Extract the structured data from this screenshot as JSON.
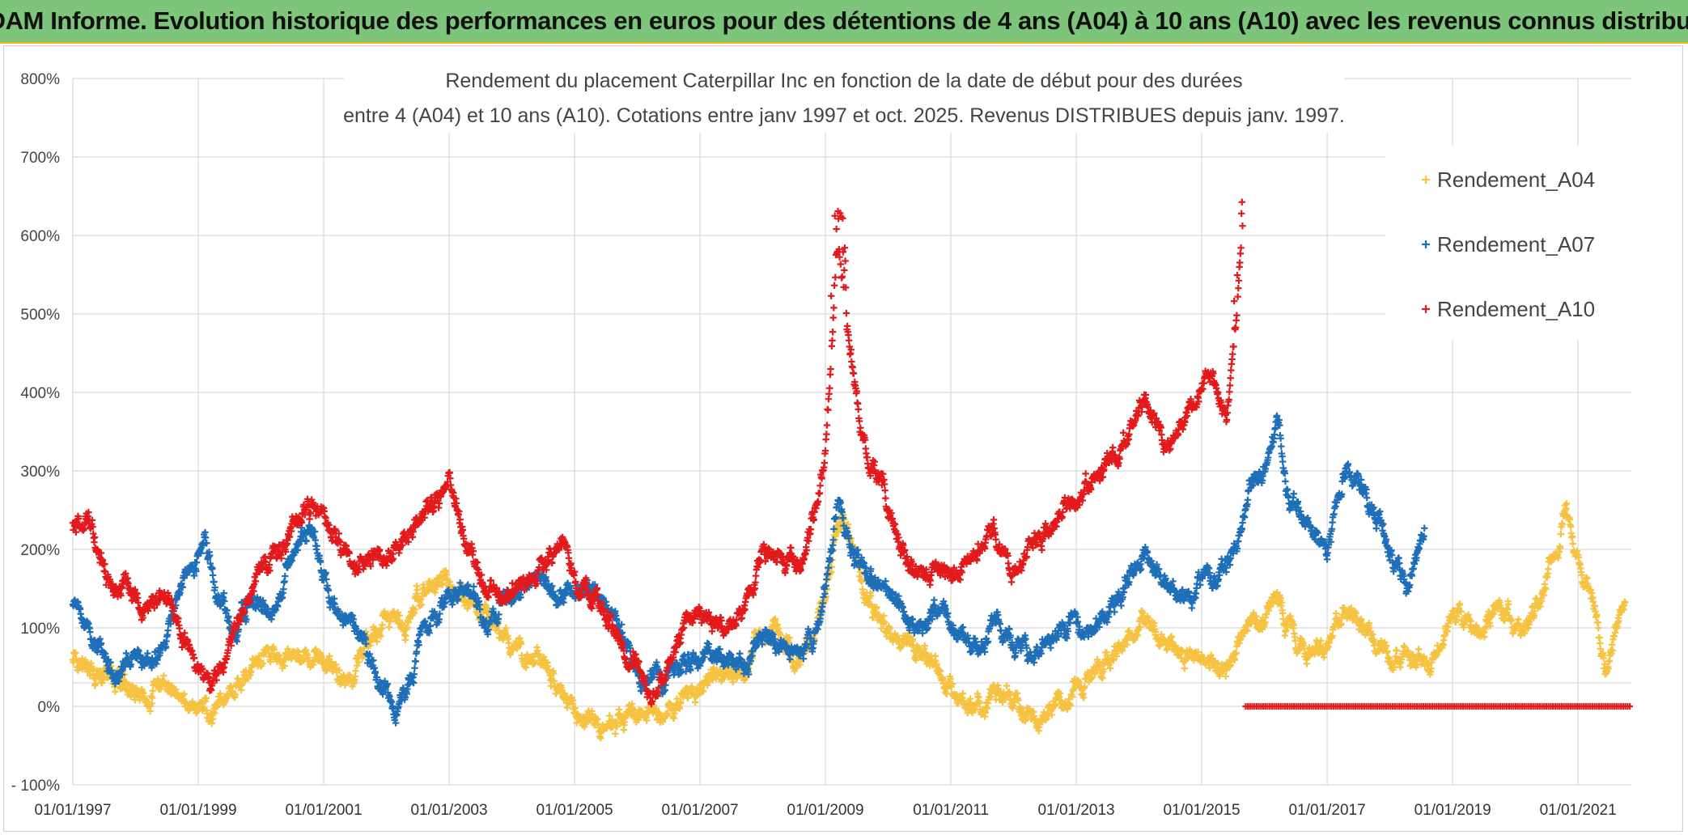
{
  "banner": {
    "title": "ADAM Informe. Evolution historique des performances en euros pour des détentions de 4 ans (A04) à 10 ans (A10) avec les revenus connus distribués"
  },
  "chart_data": {
    "type": "scatter",
    "title_line1": "Rendement du placement Caterpillar Inc en fonction de la date de début pour des durées",
    "title_line2": "entre 4 (A04) et 10 ans (A10). Cotations entre janv 1997 et oct. 2025. Revenus DISTRIBUES depuis janv. 1997.",
    "xlabel": "",
    "ylabel": "",
    "x_range": [
      1997.0,
      2021.85
    ],
    "ylim": [
      -100,
      800
    ],
    "y_ticks": [
      {
        "value": 800,
        "label": "800%"
      },
      {
        "value": 700,
        "label": "700%"
      },
      {
        "value": 600,
        "label": "600%"
      },
      {
        "value": 500,
        "label": "500%"
      },
      {
        "value": 400,
        "label": "400%"
      },
      {
        "value": 300,
        "label": "300%"
      },
      {
        "value": 200,
        "label": "200%"
      },
      {
        "value": 100,
        "label": "100%"
      },
      {
        "value": 0,
        "label": "0%"
      },
      {
        "value": -100,
        "label": "- 100%"
      }
    ],
    "x_ticks": [
      {
        "value": 1997,
        "label": "01/01/1997"
      },
      {
        "value": 1999,
        "label": "01/01/1999"
      },
      {
        "value": 2001,
        "label": "01/01/2001"
      },
      {
        "value": 2003,
        "label": "01/01/2003"
      },
      {
        "value": 2005,
        "label": "01/01/2005"
      },
      {
        "value": 2007,
        "label": "01/01/2007"
      },
      {
        "value": 2009,
        "label": "01/01/2009"
      },
      {
        "value": 2011,
        "label": "01/01/2011"
      },
      {
        "value": 2013,
        "label": "01/01/2013"
      },
      {
        "value": 2015,
        "label": "01/01/2015"
      },
      {
        "value": 2017,
        "label": "01/01/2017"
      },
      {
        "value": 2019,
        "label": "01/01/2019"
      },
      {
        "value": 2021,
        "label": "01/01/2021"
      }
    ],
    "grid": true,
    "legend_position": "top-right",
    "series": [
      {
        "name": "Rendement_A04",
        "color": "#f5c242",
        "x_end": 2021.75,
        "points": [
          [
            1997.0,
            55
          ],
          [
            1997.4,
            48
          ],
          [
            1997.8,
            30
          ],
          [
            1998.2,
            12
          ],
          [
            1998.5,
            30
          ],
          [
            1998.8,
            10
          ],
          [
            1999.2,
            -10
          ],
          [
            1999.5,
            20
          ],
          [
            1999.9,
            55
          ],
          [
            2000.3,
            60
          ],
          [
            2000.6,
            75
          ],
          [
            2001.0,
            60
          ],
          [
            2001.4,
            30
          ],
          [
            2001.7,
            90
          ],
          [
            2002.0,
            110
          ],
          [
            2002.3,
            105
          ],
          [
            2002.6,
            150
          ],
          [
            2002.9,
            170
          ],
          [
            2003.2,
            150
          ],
          [
            2003.5,
            120
          ],
          [
            2003.8,
            90
          ],
          [
            2004.1,
            60
          ],
          [
            2004.4,
            55
          ],
          [
            2004.7,
            30
          ],
          [
            2004.9,
            5
          ],
          [
            2005.2,
            -20
          ],
          [
            2005.5,
            -30
          ],
          [
            2005.8,
            -15
          ],
          [
            2006.1,
            -5
          ],
          [
            2006.4,
            -15
          ],
          [
            2006.7,
            10
          ],
          [
            2007.0,
            20
          ],
          [
            2007.3,
            55
          ],
          [
            2007.6,
            30
          ],
          [
            2007.9,
            80
          ],
          [
            2008.2,
            100
          ],
          [
            2008.5,
            60
          ],
          [
            2008.8,
            90
          ],
          [
            2009.0,
            160
          ],
          [
            2009.2,
            240
          ],
          [
            2009.4,
            210
          ],
          [
            2009.6,
            150
          ],
          [
            2009.9,
            100
          ],
          [
            2010.2,
            80
          ],
          [
            2010.5,
            70
          ],
          [
            2010.8,
            50
          ],
          [
            2011.1,
            10
          ],
          [
            2011.4,
            -5
          ],
          [
            2011.7,
            20
          ],
          [
            2012.0,
            5
          ],
          [
            2012.3,
            -20
          ],
          [
            2012.6,
            0
          ],
          [
            2012.9,
            20
          ],
          [
            2013.2,
            40
          ],
          [
            2013.5,
            60
          ],
          [
            2013.8,
            85
          ],
          [
            2014.1,
            110
          ],
          [
            2014.4,
            80
          ],
          [
            2014.7,
            60
          ],
          [
            2015.0,
            70
          ],
          [
            2015.3,
            50
          ],
          [
            2015.6,
            80
          ],
          [
            2015.9,
            110
          ],
          [
            2016.2,
            140
          ],
          [
            2016.4,
            100
          ],
          [
            2016.7,
            60
          ],
          [
            2017.0,
            80
          ],
          [
            2017.3,
            130
          ],
          [
            2017.5,
            110
          ],
          [
            2017.8,
            70
          ],
          [
            2018.1,
            60
          ],
          [
            2018.4,
            65
          ],
          [
            2018.7,
            60
          ],
          [
            2018.9,
            110
          ],
          [
            2019.2,
            110
          ],
          [
            2019.5,
            100
          ],
          [
            2019.8,
            130
          ],
          [
            2020.1,
            90
          ],
          [
            2020.4,
            140
          ],
          [
            2020.6,
            190
          ],
          [
            2020.8,
            250
          ],
          [
            2021.0,
            180
          ],
          [
            2021.2,
            150
          ],
          [
            2021.45,
            40
          ],
          [
            2021.6,
            100
          ],
          [
            2021.75,
            140
          ]
        ]
      },
      {
        "name": "Rendement_A07",
        "color": "#1f6fb8",
        "x_end": 2018.55,
        "points": [
          [
            1997.0,
            135
          ],
          [
            1997.3,
            95
          ],
          [
            1997.7,
            35
          ],
          [
            1998.0,
            70
          ],
          [
            1998.3,
            50
          ],
          [
            1998.6,
            120
          ],
          [
            1998.9,
            180
          ],
          [
            1999.1,
            215
          ],
          [
            1999.3,
            140
          ],
          [
            1999.6,
            100
          ],
          [
            1999.9,
            130
          ],
          [
            2000.2,
            120
          ],
          [
            2000.5,
            200
          ],
          [
            2000.8,
            230
          ],
          [
            2001.1,
            140
          ],
          [
            2001.4,
            110
          ],
          [
            2001.6,
            90
          ],
          [
            2001.8,
            40
          ],
          [
            2002.0,
            20
          ],
          [
            2002.2,
            -10
          ],
          [
            2002.4,
            40
          ],
          [
            2002.6,
            90
          ],
          [
            2002.8,
            110
          ],
          [
            2003.0,
            140
          ],
          [
            2003.3,
            150
          ],
          [
            2003.6,
            100
          ],
          [
            2003.9,
            140
          ],
          [
            2004.2,
            160
          ],
          [
            2004.5,
            160
          ],
          [
            2004.8,
            130
          ],
          [
            2005.0,
            160
          ],
          [
            2005.3,
            150
          ],
          [
            2005.6,
            120
          ],
          [
            2005.9,
            60
          ],
          [
            2006.1,
            35
          ],
          [
            2006.4,
            30
          ],
          [
            2006.7,
            50
          ],
          [
            2007.0,
            60
          ],
          [
            2007.3,
            70
          ],
          [
            2007.6,
            50
          ],
          [
            2007.9,
            75
          ],
          [
            2008.2,
            80
          ],
          [
            2008.5,
            70
          ],
          [
            2008.8,
            80
          ],
          [
            2009.0,
            140
          ],
          [
            2009.2,
            270
          ],
          [
            2009.4,
            200
          ],
          [
            2009.6,
            170
          ],
          [
            2009.9,
            150
          ],
          [
            2010.2,
            130
          ],
          [
            2010.5,
            100
          ],
          [
            2010.8,
            120
          ],
          [
            2011.1,
            100
          ],
          [
            2011.4,
            80
          ],
          [
            2011.7,
            100
          ],
          [
            2012.0,
            80
          ],
          [
            2012.3,
            60
          ],
          [
            2012.6,
            80
          ],
          [
            2012.9,
            110
          ],
          [
            2013.2,
            100
          ],
          [
            2013.5,
            110
          ],
          [
            2013.8,
            150
          ],
          [
            2014.1,
            190
          ],
          [
            2014.4,
            160
          ],
          [
            2014.7,
            140
          ],
          [
            2015.0,
            160
          ],
          [
            2015.3,
            170
          ],
          [
            2015.6,
            210
          ],
          [
            2015.8,
            290
          ],
          [
            2016.0,
            300
          ],
          [
            2016.2,
            360
          ],
          [
            2016.4,
            260
          ],
          [
            2016.7,
            250
          ],
          [
            2017.0,
            200
          ],
          [
            2017.3,
            300
          ],
          [
            2017.5,
            280
          ],
          [
            2017.8,
            240
          ],
          [
            2018.1,
            170
          ],
          [
            2018.3,
            150
          ],
          [
            2018.55,
            230
          ]
        ]
      },
      {
        "name": "Rendement_A10",
        "color": "#e31a1c",
        "x_end": 2015.65,
        "points": [
          [
            1997.0,
            235
          ],
          [
            1997.3,
            220
          ],
          [
            1997.6,
            150
          ],
          [
            1997.9,
            145
          ],
          [
            1998.2,
            130
          ],
          [
            1998.5,
            140
          ],
          [
            1998.8,
            80
          ],
          [
            1999.0,
            40
          ],
          [
            1999.2,
            15
          ],
          [
            1999.4,
            60
          ],
          [
            1999.7,
            120
          ],
          [
            2000.0,
            180
          ],
          [
            2000.3,
            200
          ],
          [
            2000.6,
            250
          ],
          [
            2000.9,
            260
          ],
          [
            2001.2,
            230
          ],
          [
            2001.5,
            170
          ],
          [
            2001.8,
            200
          ],
          [
            2002.1,
            190
          ],
          [
            2002.4,
            230
          ],
          [
            2002.7,
            260
          ],
          [
            2003.0,
            280
          ],
          [
            2003.3,
            200
          ],
          [
            2003.6,
            150
          ],
          [
            2003.9,
            140
          ],
          [
            2004.2,
            150
          ],
          [
            2004.5,
            180
          ],
          [
            2004.8,
            210
          ],
          [
            2005.0,
            150
          ],
          [
            2005.3,
            140
          ],
          [
            2005.6,
            100
          ],
          [
            2005.9,
            60
          ],
          [
            2006.2,
            20
          ],
          [
            2006.5,
            50
          ],
          [
            2006.8,
            110
          ],
          [
            2007.1,
            110
          ],
          [
            2007.4,
            100
          ],
          [
            2007.7,
            120
          ],
          [
            2008.0,
            200
          ],
          [
            2008.3,
            190
          ],
          [
            2008.6,
            180
          ],
          [
            2008.8,
            240
          ],
          [
            2009.0,
            330
          ],
          [
            2009.2,
            580
          ],
          [
            2009.4,
            450
          ],
          [
            2009.6,
            330
          ],
          [
            2009.9,
            290
          ],
          [
            2010.2,
            200
          ],
          [
            2010.5,
            160
          ],
          [
            2010.8,
            180
          ],
          [
            2011.1,
            170
          ],
          [
            2011.4,
            200
          ],
          [
            2011.7,
            230
          ],
          [
            2012.0,
            170
          ],
          [
            2012.3,
            210
          ],
          [
            2012.6,
            220
          ],
          [
            2012.9,
            250
          ],
          [
            2013.2,
            280
          ],
          [
            2013.5,
            300
          ],
          [
            2013.8,
            350
          ],
          [
            2014.1,
            390
          ],
          [
            2014.4,
            340
          ],
          [
            2014.7,
            360
          ],
          [
            2015.0,
            410
          ],
          [
            2015.2,
            420
          ],
          [
            2015.4,
            360
          ],
          [
            2015.55,
            500
          ],
          [
            2015.65,
            620
          ]
        ]
      }
    ]
  }
}
